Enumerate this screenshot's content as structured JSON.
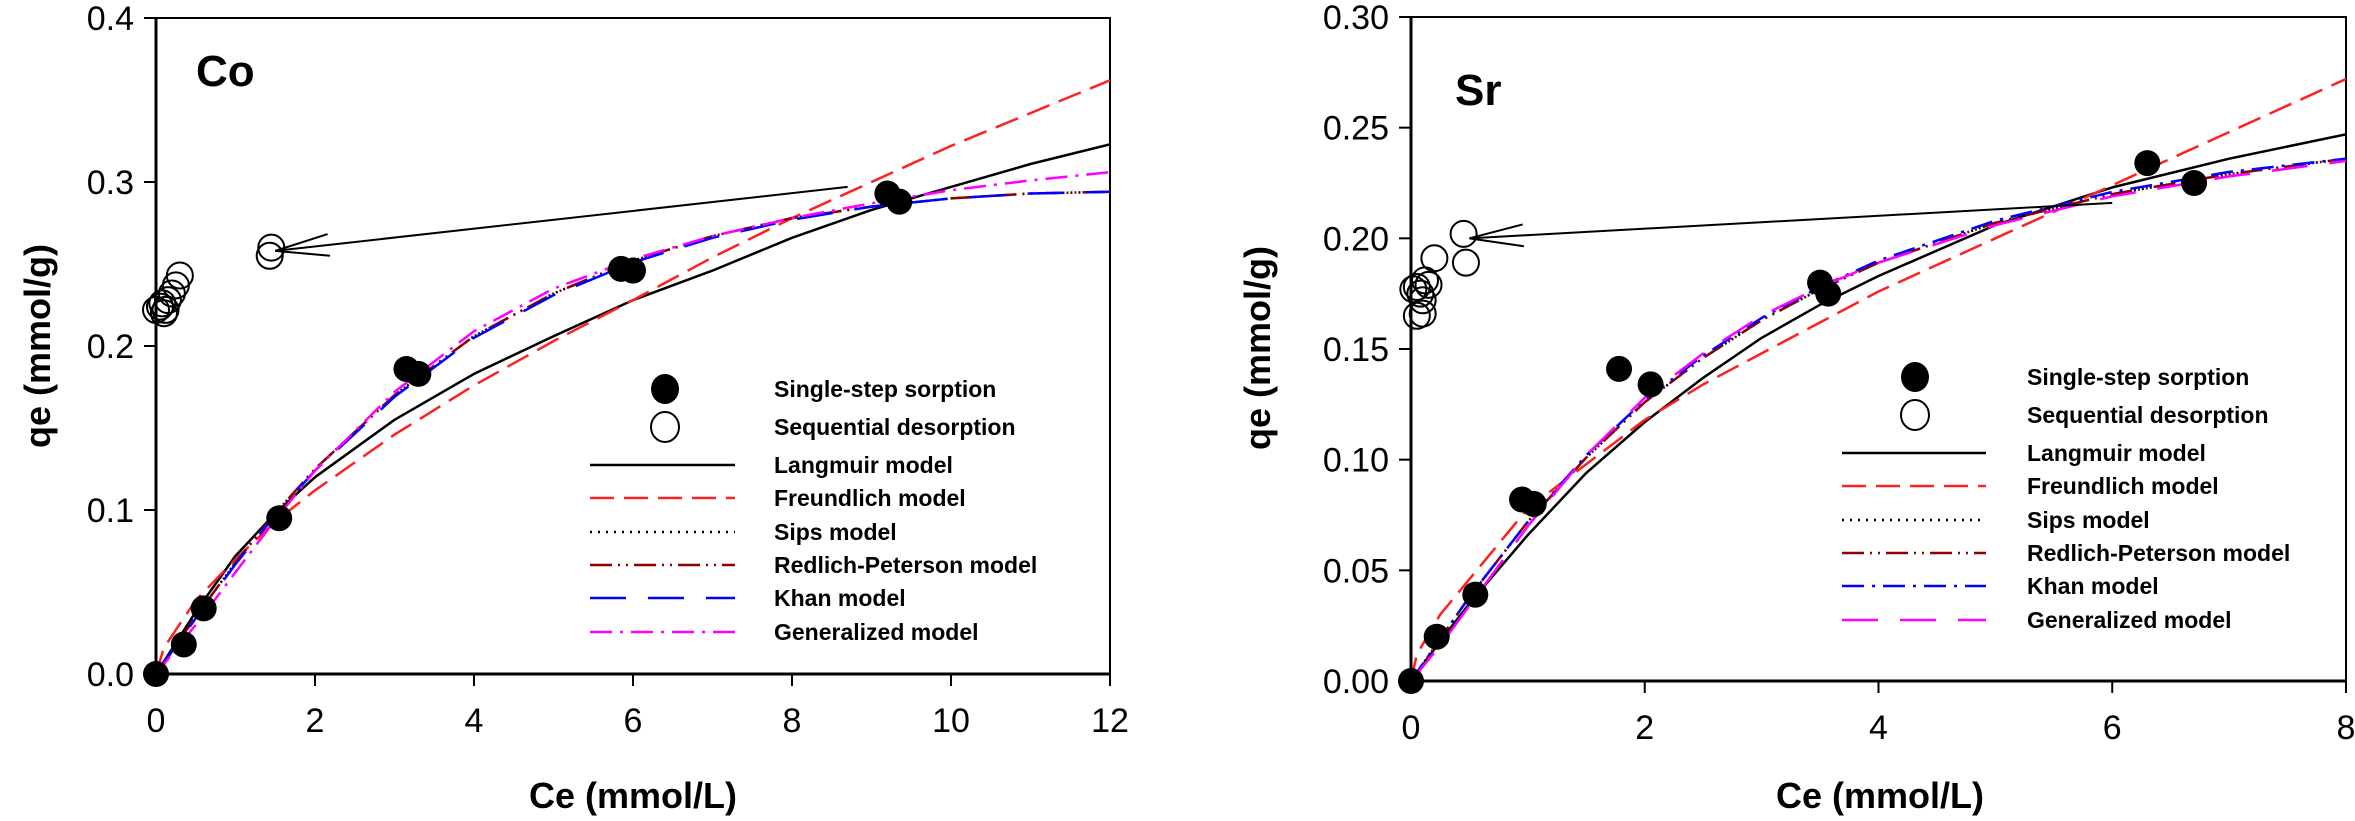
{
  "chart_data": [
    {
      "type": "scatter",
      "panel_label": "Co",
      "xlabel": "Ce (mmol/L)",
      "ylabel": "qe (mmol/g)",
      "xlim": [
        0,
        12
      ],
      "ylim": [
        0,
        0.4
      ],
      "xticks": [
        0,
        2,
        4,
        6,
        8,
        10,
        12
      ],
      "yticks": [
        0.0,
        0.1,
        0.2,
        0.3,
        0.4
      ],
      "ytick_labels": [
        "0.0",
        "0.1",
        "0.2",
        "0.3",
        "0.4"
      ],
      "grid": false,
      "legend_position": "center-right",
      "arrow": {
        "from": [
          8.7,
          0.297
        ],
        "to": [
          1.5,
          0.258
        ]
      },
      "markers": [
        {
          "name": "Single-step sorption",
          "style": "filled",
          "points": [
            [
              0,
              0
            ],
            [
              0.35,
              0.018
            ],
            [
              0.6,
              0.04
            ],
            [
              1.55,
              0.095
            ],
            [
              3.15,
              0.186
            ],
            [
              3.3,
              0.183
            ],
            [
              5.85,
              0.247
            ],
            [
              6.0,
              0.246
            ],
            [
              9.2,
              0.293
            ],
            [
              9.35,
              0.288
            ]
          ]
        },
        {
          "name": "Sequential desorption",
          "style": "open",
          "points": [
            [
              0.0,
              0.222
            ],
            [
              0.05,
              0.224
            ],
            [
              0.1,
              0.22
            ],
            [
              0.08,
              0.226
            ],
            [
              0.12,
              0.222
            ],
            [
              0.15,
              0.228
            ],
            [
              0.2,
              0.232
            ],
            [
              0.25,
              0.237
            ],
            [
              0.3,
              0.243
            ],
            [
              1.45,
              0.26
            ],
            [
              1.43,
              0.255
            ]
          ]
        }
      ],
      "series": [
        {
          "name": "Langmuir model",
          "color": "#000000",
          "dash": "solid",
          "x": [
            0,
            0.5,
            1,
            1.5,
            2,
            3,
            4,
            5,
            6,
            7,
            8,
            9,
            10,
            11,
            12
          ],
          "y": [
            0,
            0.038,
            0.072,
            0.098,
            0.12,
            0.155,
            0.183,
            0.206,
            0.228,
            0.246,
            0.266,
            0.283,
            0.297,
            0.311,
            0.323
          ]
        },
        {
          "name": "Freundlich model",
          "color": "#ff2020",
          "dash": "dash",
          "x": [
            0,
            0.1,
            0.5,
            1,
            1.5,
            2,
            3,
            4,
            5,
            6,
            7,
            8,
            9,
            10,
            11,
            12
          ],
          "y": [
            0,
            0.016,
            0.045,
            0.07,
            0.093,
            0.112,
            0.146,
            0.176,
            0.203,
            0.228,
            0.254,
            0.278,
            0.3,
            0.322,
            0.342,
            0.362
          ]
        },
        {
          "name": "Sips model",
          "color": "#000000",
          "dash": "dot",
          "x": [
            0,
            0.5,
            1,
            1.5,
            2,
            3,
            4,
            5,
            6,
            7,
            8,
            9,
            10,
            11,
            12
          ],
          "y": [
            0,
            0.035,
            0.068,
            0.098,
            0.125,
            0.17,
            0.206,
            0.232,
            0.252,
            0.267,
            0.278,
            0.285,
            0.29,
            0.293,
            0.294
          ]
        },
        {
          "name": "Redlich-Peterson model",
          "color": "#8b0000",
          "dash": "dashdotdot",
          "x": [
            0,
            0.5,
            1,
            1.5,
            2,
            3,
            4,
            5,
            6,
            7,
            8,
            9,
            10,
            11,
            12
          ],
          "y": [
            0,
            0.035,
            0.068,
            0.098,
            0.125,
            0.17,
            0.206,
            0.232,
            0.252,
            0.267,
            0.278,
            0.285,
            0.29,
            0.293,
            0.294
          ]
        },
        {
          "name": "Khan model",
          "color": "#0000ff",
          "dash": "longdash",
          "x": [
            0,
            0.5,
            1,
            1.5,
            2,
            3,
            4,
            5,
            6,
            7,
            8,
            9,
            10,
            11,
            12
          ],
          "y": [
            0,
            0.034,
            0.067,
            0.097,
            0.124,
            0.169,
            0.205,
            0.231,
            0.251,
            0.266,
            0.277,
            0.285,
            0.29,
            0.293,
            0.294
          ]
        },
        {
          "name": "Generalized model",
          "color": "#ff00ff",
          "dash": "dashdot",
          "x": [
            0,
            0.5,
            1,
            1.5,
            2,
            3,
            4,
            5,
            6,
            7,
            8,
            9,
            10,
            11,
            12
          ],
          "y": [
            0,
            0.03,
            0.062,
            0.094,
            0.124,
            0.172,
            0.209,
            0.235,
            0.253,
            0.267,
            0.278,
            0.287,
            0.295,
            0.301,
            0.306
          ]
        }
      ],
      "legend": [
        "Single-step sorption",
        "Sequential desorption",
        "Langmuir model",
        "Freundlich model",
        "Sips model",
        "Redlich-Peterson model",
        "Khan model",
        "Generalized model"
      ]
    },
    {
      "type": "scatter",
      "panel_label": "Sr",
      "xlabel": "Ce (mmol/L)",
      "ylabel": "qe (mmol/g)",
      "xlim": [
        0,
        8
      ],
      "ylim": [
        0,
        0.3
      ],
      "xticks": [
        0,
        2,
        4,
        6,
        8
      ],
      "yticks": [
        0.0,
        0.05,
        0.1,
        0.15,
        0.2,
        0.25,
        0.3
      ],
      "ytick_labels": [
        "0.00",
        "0.05",
        "0.10",
        "0.15",
        "0.20",
        "0.25",
        "0.30"
      ],
      "grid": false,
      "legend_position": "center-right",
      "arrow": {
        "from": [
          6.0,
          0.216
        ],
        "to": [
          0.5,
          0.2
        ]
      },
      "markers": [
        {
          "name": "Single-step sorption",
          "style": "filled",
          "points": [
            [
              0,
              0
            ],
            [
              0.22,
              0.02
            ],
            [
              0.55,
              0.039
            ],
            [
              0.95,
              0.082
            ],
            [
              1.05,
              0.08
            ],
            [
              1.78,
              0.141
            ],
            [
              2.05,
              0.134
            ],
            [
              3.5,
              0.18
            ],
            [
              3.57,
              0.175
            ],
            [
              6.3,
              0.234
            ],
            [
              6.7,
              0.225
            ]
          ]
        },
        {
          "name": "Sequential desorption",
          "style": "open",
          "points": [
            [
              0.45,
              0.202
            ],
            [
              0.47,
              0.189
            ],
            [
              0.2,
              0.191
            ],
            [
              0.12,
              0.181
            ],
            [
              0.05,
              0.178
            ],
            [
              0.02,
              0.177
            ],
            [
              0.08,
              0.175
            ],
            [
              0.15,
              0.179
            ],
            [
              0.1,
              0.172
            ],
            [
              0.05,
              0.165
            ],
            [
              0.1,
              0.166
            ]
          ]
        }
      ],
      "series": [
        {
          "name": "Langmuir model",
          "color": "#000000",
          "dash": "solid",
          "x": [
            0,
            0.25,
            0.5,
            1,
            1.5,
            2,
            2.5,
            3,
            3.5,
            4,
            5,
            6,
            7,
            8
          ],
          "y": [
            0,
            0.018,
            0.035,
            0.066,
            0.094,
            0.117,
            0.137,
            0.155,
            0.17,
            0.183,
            0.206,
            0.223,
            0.236,
            0.247
          ]
        },
        {
          "name": "Freundlich model",
          "color": "#ff2020",
          "dash": "dash",
          "x": [
            0,
            0.05,
            0.25,
            0.5,
            1,
            1.5,
            2,
            2.5,
            3,
            3.5,
            4,
            5,
            6,
            7,
            8
          ],
          "y": [
            0,
            0.012,
            0.03,
            0.046,
            0.078,
            0.098,
            0.118,
            0.134,
            0.148,
            0.162,
            0.176,
            0.2,
            0.224,
            0.248,
            0.272
          ]
        },
        {
          "name": "Sips model",
          "color": "#000000",
          "dash": "dot",
          "x": [
            0,
            0.25,
            0.5,
            1,
            1.5,
            2,
            2.5,
            3,
            3.5,
            4,
            5,
            6,
            7,
            8
          ],
          "y": [
            0,
            0.019,
            0.038,
            0.072,
            0.101,
            0.126,
            0.146,
            0.163,
            0.177,
            0.189,
            0.207,
            0.22,
            0.229,
            0.236
          ]
        },
        {
          "name": "Redlich-Peterson model",
          "color": "#8b0000",
          "dash": "dashdotdot",
          "x": [
            0,
            0.25,
            0.5,
            1,
            1.5,
            2,
            2.5,
            3,
            3.5,
            4,
            5,
            6,
            7,
            8
          ],
          "y": [
            0,
            0.019,
            0.038,
            0.072,
            0.101,
            0.126,
            0.146,
            0.163,
            0.177,
            0.189,
            0.207,
            0.22,
            0.229,
            0.236
          ]
        },
        {
          "name": "Khan model",
          "color": "#0000ff",
          "dash": "dashdot",
          "x": [
            0,
            0.25,
            0.5,
            1,
            1.5,
            2,
            2.5,
            3,
            3.5,
            4,
            5,
            6,
            7,
            8
          ],
          "y": [
            0,
            0.019,
            0.038,
            0.072,
            0.102,
            0.127,
            0.147,
            0.164,
            0.178,
            0.19,
            0.208,
            0.221,
            0.23,
            0.236
          ]
        },
        {
          "name": "Generalized model",
          "color": "#ff00ff",
          "dash": "longdash",
          "x": [
            0,
            0.25,
            0.5,
            1,
            1.5,
            2,
            2.5,
            3,
            3.5,
            4,
            5,
            6,
            7,
            8
          ],
          "y": [
            0,
            0.016,
            0.034,
            0.07,
            0.102,
            0.128,
            0.148,
            0.165,
            0.178,
            0.189,
            0.206,
            0.219,
            0.228,
            0.235
          ]
        }
      ],
      "legend": [
        "Single-step sorption",
        "Sequential desorption",
        "Langmuir model",
        "Freundlich model",
        "Sips model",
        "Redlich-Peterson model",
        "Khan model",
        "Generalized model"
      ]
    }
  ]
}
